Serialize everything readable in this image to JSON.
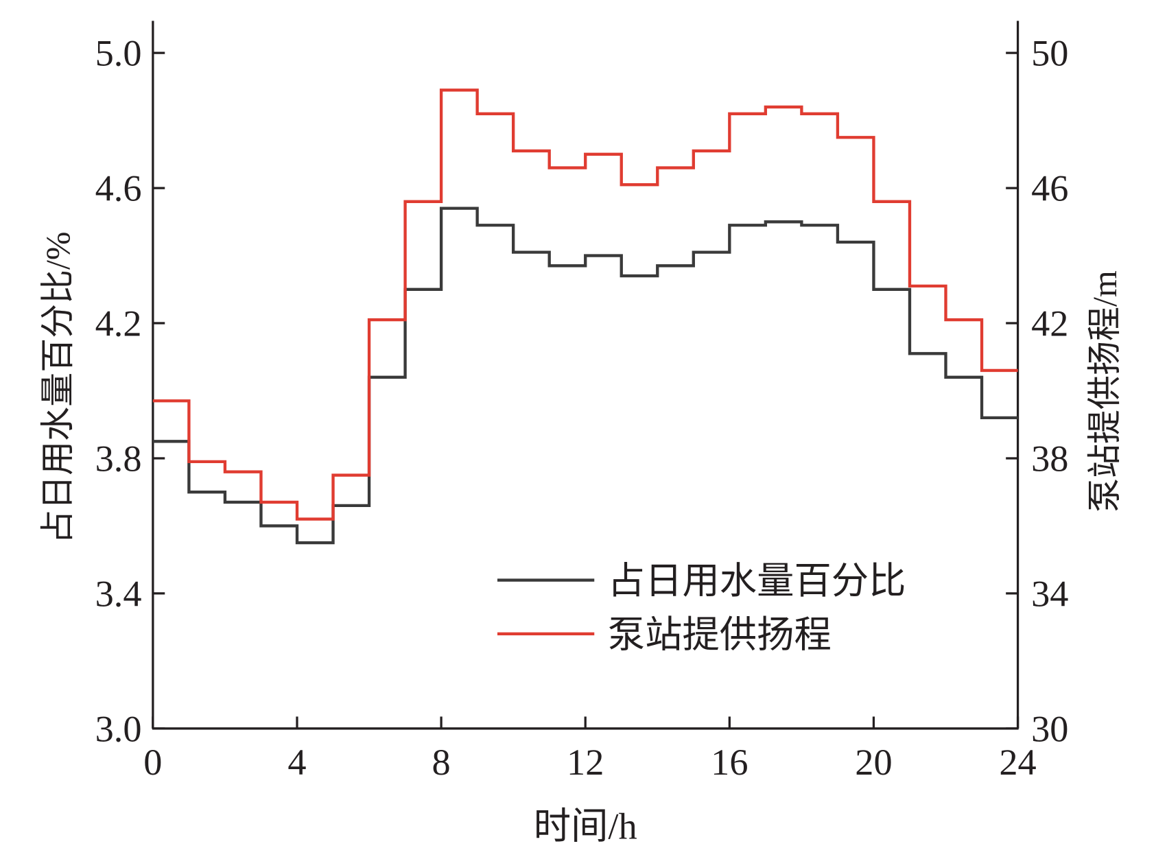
{
  "chart_data": {
    "type": "line",
    "step": true,
    "xlabel": "时间/h",
    "ylabel_left": "占日用水量百分比/%",
    "ylabel_right": "泵站提供扬程/m",
    "xlim": [
      0,
      24
    ],
    "ylim_left": [
      3.0,
      5.0
    ],
    "ylim_right": [
      30,
      50
    ],
    "x_ticks": [
      "0",
      "4",
      "8",
      "12",
      "16",
      "20",
      "24"
    ],
    "y_left_ticks": [
      "3.0",
      "3.4",
      "3.8",
      "4.2",
      "4.6",
      "5.0"
    ],
    "y_right_ticks": [
      "30",
      "34",
      "38",
      "42",
      "46",
      "50"
    ],
    "grid": false,
    "legend_position": "lower-right",
    "series": [
      {
        "name": "占日用水量百分比",
        "axis": "left",
        "color": "#3a3a3a",
        "values": [
          3.85,
          3.7,
          3.67,
          3.6,
          3.55,
          3.66,
          4.04,
          4.3,
          4.54,
          4.49,
          4.41,
          4.37,
          4.4,
          4.34,
          4.37,
          4.41,
          4.49,
          4.5,
          4.49,
          4.44,
          4.3,
          4.11,
          4.04,
          3.92
        ]
      },
      {
        "name": "泵站提供扬程",
        "axis": "right",
        "color": "#e03c31",
        "values": [
          39.7,
          37.9,
          37.6,
          36.7,
          36.2,
          37.5,
          42.1,
          45.6,
          48.9,
          48.2,
          47.1,
          46.6,
          47.0,
          46.1,
          46.6,
          47.1,
          48.2,
          48.4,
          48.2,
          47.5,
          45.6,
          43.1,
          42.1,
          40.6
        ]
      }
    ]
  }
}
